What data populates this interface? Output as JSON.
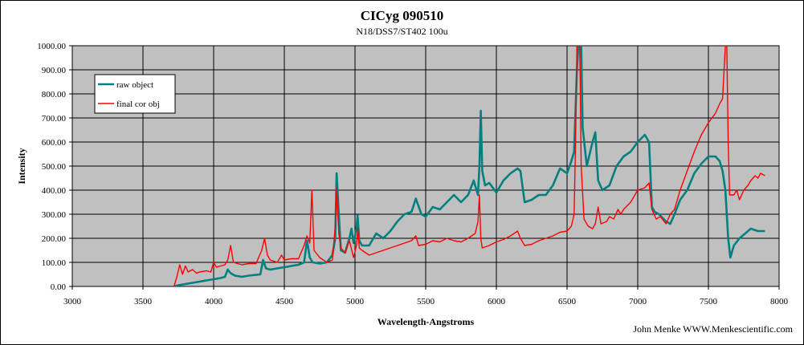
{
  "chart_data": {
    "type": "line",
    "title": "CICyg 090510",
    "subtitle": "N18/DSS7/ST402  100u",
    "xlabel": "Wavelength-Angstroms",
    "ylabel": "Intensity",
    "credit": "John Menke  WWW.Menkescientific.com",
    "xlim": [
      3000,
      8000
    ],
    "ylim": [
      0,
      1000
    ],
    "x_ticks": [
      "3000",
      "3500",
      "4000",
      "4500",
      "5000",
      "5500",
      "6000",
      "6500",
      "7000",
      "7500",
      "8000"
    ],
    "y_ticks": [
      "0.00",
      "100.00",
      "200.00",
      "300.00",
      "400.00",
      "500.00",
      "600.00",
      "700.00",
      "800.00",
      "900.00",
      "1000.00"
    ],
    "grid": true,
    "plot_background": "#c0c0c0",
    "legend": {
      "placement": "top-left",
      "entries": [
        "raw object",
        "final cor obj"
      ]
    },
    "series": [
      {
        "name": "raw object",
        "color": "#008080",
        "points": [
          [
            3720,
            0
          ],
          [
            3750,
            5
          ],
          [
            3800,
            10
          ],
          [
            3850,
            15
          ],
          [
            3900,
            20
          ],
          [
            3950,
            25
          ],
          [
            4000,
            30
          ],
          [
            4050,
            35
          ],
          [
            4080,
            40
          ],
          [
            4100,
            70
          ],
          [
            4120,
            55
          ],
          [
            4150,
            45
          ],
          [
            4200,
            40
          ],
          [
            4250,
            45
          ],
          [
            4300,
            48
          ],
          [
            4330,
            50
          ],
          [
            4350,
            110
          ],
          [
            4370,
            75
          ],
          [
            4400,
            70
          ],
          [
            4450,
            75
          ],
          [
            4500,
            80
          ],
          [
            4550,
            85
          ],
          [
            4600,
            90
          ],
          [
            4640,
            100
          ],
          [
            4660,
            190
          ],
          [
            4680,
            120
          ],
          [
            4700,
            100
          ],
          [
            4750,
            95
          ],
          [
            4800,
            100
          ],
          [
            4840,
            130
          ],
          [
            4860,
            200
          ],
          [
            4870,
            470
          ],
          [
            4885,
            300
          ],
          [
            4900,
            150
          ],
          [
            4930,
            140
          ],
          [
            4960,
            200
          ],
          [
            4975,
            240
          ],
          [
            4990,
            180
          ],
          [
            5010,
            240
          ],
          [
            5018,
            295
          ],
          [
            5030,
            190
          ],
          [
            5050,
            170
          ],
          [
            5100,
            170
          ],
          [
            5150,
            220
          ],
          [
            5200,
            200
          ],
          [
            5250,
            230
          ],
          [
            5300,
            270
          ],
          [
            5350,
            300
          ],
          [
            5400,
            310
          ],
          [
            5430,
            365
          ],
          [
            5470,
            300
          ],
          [
            5500,
            290
          ],
          [
            5550,
            330
          ],
          [
            5600,
            320
          ],
          [
            5650,
            350
          ],
          [
            5700,
            380
          ],
          [
            5750,
            350
          ],
          [
            5800,
            380
          ],
          [
            5840,
            440
          ],
          [
            5870,
            380
          ],
          [
            5880,
            500
          ],
          [
            5890,
            730
          ],
          [
            5900,
            480
          ],
          [
            5920,
            420
          ],
          [
            5950,
            430
          ],
          [
            6000,
            390
          ],
          [
            6050,
            440
          ],
          [
            6100,
            470
          ],
          [
            6150,
            490
          ],
          [
            6170,
            480
          ],
          [
            6200,
            350
          ],
          [
            6250,
            360
          ],
          [
            6300,
            380
          ],
          [
            6350,
            380
          ],
          [
            6400,
            420
          ],
          [
            6450,
            490
          ],
          [
            6500,
            470
          ],
          [
            6530,
            520
          ],
          [
            6550,
            560
          ],
          [
            6570,
            900
          ],
          [
            6580,
            1000
          ],
          [
            6600,
            1000
          ],
          [
            6610,
            660
          ],
          [
            6640,
            500
          ],
          [
            6680,
            600
          ],
          [
            6700,
            640
          ],
          [
            6720,
            440
          ],
          [
            6750,
            400
          ],
          [
            6800,
            420
          ],
          [
            6850,
            500
          ],
          [
            6900,
            540
          ],
          [
            6950,
            560
          ],
          [
            7000,
            600
          ],
          [
            7050,
            630
          ],
          [
            7080,
            600
          ],
          [
            7100,
            330
          ],
          [
            7120,
            310
          ],
          [
            7150,
            300
          ],
          [
            7200,
            270
          ],
          [
            7230,
            260
          ],
          [
            7260,
            300
          ],
          [
            7300,
            360
          ],
          [
            7350,
            400
          ],
          [
            7400,
            470
          ],
          [
            7450,
            510
          ],
          [
            7500,
            540
          ],
          [
            7550,
            540
          ],
          [
            7580,
            520
          ],
          [
            7600,
            480
          ],
          [
            7620,
            400
          ],
          [
            7640,
            200
          ],
          [
            7655,
            120
          ],
          [
            7680,
            170
          ],
          [
            7720,
            200
          ],
          [
            7760,
            220
          ],
          [
            7800,
            240
          ],
          [
            7850,
            230
          ],
          [
            7900,
            230
          ]
        ]
      },
      {
        "name": "final cor obj",
        "color": "#ff0000",
        "points": [
          [
            3720,
            0
          ],
          [
            3740,
            40
          ],
          [
            3760,
            90
          ],
          [
            3780,
            50
          ],
          [
            3800,
            85
          ],
          [
            3820,
            60
          ],
          [
            3850,
            70
          ],
          [
            3880,
            55
          ],
          [
            3900,
            60
          ],
          [
            3950,
            65
          ],
          [
            3980,
            60
          ],
          [
            4000,
            100
          ],
          [
            4020,
            80
          ],
          [
            4050,
            85
          ],
          [
            4080,
            90
          ],
          [
            4100,
            110
          ],
          [
            4120,
            170
          ],
          [
            4140,
            100
          ],
          [
            4200,
            90
          ],
          [
            4250,
            95
          ],
          [
            4300,
            95
          ],
          [
            4340,
            150
          ],
          [
            4360,
            200
          ],
          [
            4380,
            130
          ],
          [
            4400,
            110
          ],
          [
            4450,
            100
          ],
          [
            4480,
            130
          ],
          [
            4500,
            110
          ],
          [
            4550,
            115
          ],
          [
            4600,
            115
          ],
          [
            4640,
            170
          ],
          [
            4660,
            210
          ],
          [
            4680,
            180
          ],
          [
            4695,
            400
          ],
          [
            4710,
            150
          ],
          [
            4750,
            120
          ],
          [
            4800,
            100
          ],
          [
            4840,
            110
          ],
          [
            4860,
            250
          ],
          [
            4870,
            410
          ],
          [
            4885,
            220
          ],
          [
            4900,
            160
          ],
          [
            4930,
            140
          ],
          [
            4960,
            190
          ],
          [
            4990,
            120
          ],
          [
            5010,
            170
          ],
          [
            5020,
            240
          ],
          [
            5030,
            160
          ],
          [
            5050,
            150
          ],
          [
            5100,
            130
          ],
          [
            5150,
            140
          ],
          [
            5200,
            150
          ],
          [
            5250,
            160
          ],
          [
            5300,
            170
          ],
          [
            5350,
            180
          ],
          [
            5400,
            190
          ],
          [
            5430,
            210
          ],
          [
            5450,
            170
          ],
          [
            5500,
            175
          ],
          [
            5550,
            190
          ],
          [
            5600,
            185
          ],
          [
            5650,
            200
          ],
          [
            5700,
            190
          ],
          [
            5750,
            185
          ],
          [
            5800,
            200
          ],
          [
            5850,
            220
          ],
          [
            5870,
            270
          ],
          [
            5880,
            380
          ],
          [
            5890,
            200
          ],
          [
            5900,
            160
          ],
          [
            5950,
            170
          ],
          [
            6000,
            185
          ],
          [
            6050,
            195
          ],
          [
            6100,
            210
          ],
          [
            6150,
            230
          ],
          [
            6170,
            200
          ],
          [
            6200,
            170
          ],
          [
            6250,
            175
          ],
          [
            6300,
            190
          ],
          [
            6350,
            200
          ],
          [
            6400,
            210
          ],
          [
            6450,
            225
          ],
          [
            6500,
            230
          ],
          [
            6530,
            250
          ],
          [
            6550,
            300
          ],
          [
            6560,
            600
          ],
          [
            6570,
            1000
          ],
          [
            6590,
            1000
          ],
          [
            6600,
            500
          ],
          [
            6620,
            280
          ],
          [
            6650,
            250
          ],
          [
            6680,
            240
          ],
          [
            6700,
            260
          ],
          [
            6720,
            330
          ],
          [
            6740,
            260
          ],
          [
            6780,
            270
          ],
          [
            6800,
            290
          ],
          [
            6830,
            280
          ],
          [
            6860,
            320
          ],
          [
            6880,
            300
          ],
          [
            6900,
            320
          ],
          [
            6950,
            350
          ],
          [
            7000,
            400
          ],
          [
            7050,
            410
          ],
          [
            7080,
            430
          ],
          [
            7100,
            320
          ],
          [
            7130,
            280
          ],
          [
            7160,
            290
          ],
          [
            7200,
            260
          ],
          [
            7230,
            300
          ],
          [
            7260,
            320
          ],
          [
            7300,
            400
          ],
          [
            7350,
            480
          ],
          [
            7400,
            560
          ],
          [
            7450,
            630
          ],
          [
            7500,
            680
          ],
          [
            7550,
            720
          ],
          [
            7580,
            760
          ],
          [
            7600,
            780
          ],
          [
            7620,
            1000
          ],
          [
            7630,
            1000
          ],
          [
            7640,
            600
          ],
          [
            7650,
            380
          ],
          [
            7680,
            380
          ],
          [
            7700,
            400
          ],
          [
            7720,
            360
          ],
          [
            7750,
            400
          ],
          [
            7780,
            420
          ],
          [
            7800,
            440
          ],
          [
            7830,
            460
          ],
          [
            7850,
            450
          ],
          [
            7870,
            470
          ],
          [
            7900,
            460
          ]
        ]
      }
    ]
  }
}
